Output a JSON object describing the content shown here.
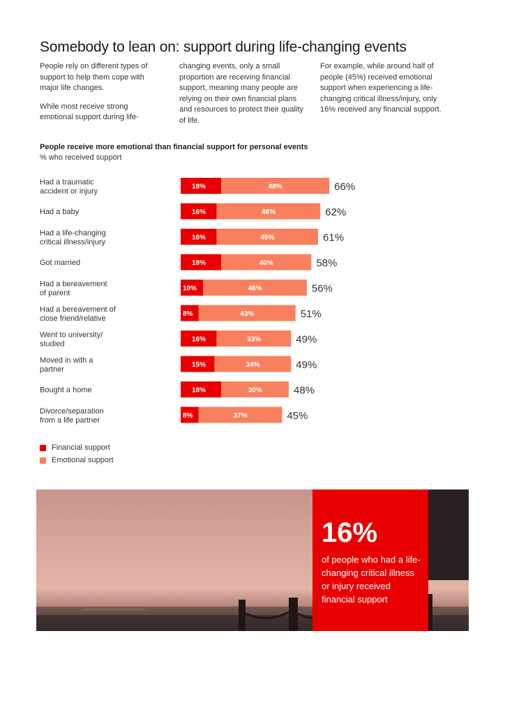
{
  "page": {
    "title": "Somebody to lean on: support during life-changing events",
    "intro_col1_p1": "People rely on different types of support to help them cope with major life changes.",
    "intro_col1_p2": "While most receive strong emotional support during life-",
    "intro_col2": "changing events, only a small proportion are receiving financial support, meaning many people are relying on their own financial plans and resources to protect their quality of life.",
    "intro_col3": "For example, while around half of people (45%) received emotional support when experiencing a life-changing critical illness/injury, only 16% received any financial support."
  },
  "chart_data": {
    "type": "bar",
    "orientation": "horizontal",
    "stacked": true,
    "title": "People receive more emotional than financial support for personal events",
    "subtitle": "% who received support",
    "categories": [
      [
        "Had a traumatic",
        "accident or injury"
      ],
      [
        "Had a baby"
      ],
      [
        "Had a life-changing",
        "critical illness/injury"
      ],
      [
        "Got married"
      ],
      [
        "Had a bereavement",
        "of parent"
      ],
      [
        "Had a bereavement of",
        "close friend/relative"
      ],
      [
        "Went to university/",
        "studied"
      ],
      [
        "Moved in with a",
        "partner"
      ],
      [
        "Bought a home"
      ],
      [
        "Divorce/separation",
        "from a life partner"
      ]
    ],
    "series": [
      {
        "name": "Financial support",
        "color": "#e80000",
        "values": [
          18,
          16,
          16,
          18,
          10,
          8,
          16,
          15,
          18,
          8
        ]
      },
      {
        "name": "Emotional support",
        "color": "#f8805e",
        "values": [
          48,
          46,
          45,
          40,
          46,
          43,
          33,
          34,
          30,
          37
        ]
      }
    ],
    "totals": [
      66,
      62,
      61,
      58,
      56,
      51,
      49,
      49,
      48,
      45
    ],
    "value_suffix": "%",
    "legend_position": "bottom-left"
  },
  "legend": {
    "financial": "Financial support",
    "emotional": "Emotional support"
  },
  "callout": {
    "value": "16%",
    "text": "of people who had a life-changing critical illness or injury received financial support",
    "color": "#e80000"
  }
}
